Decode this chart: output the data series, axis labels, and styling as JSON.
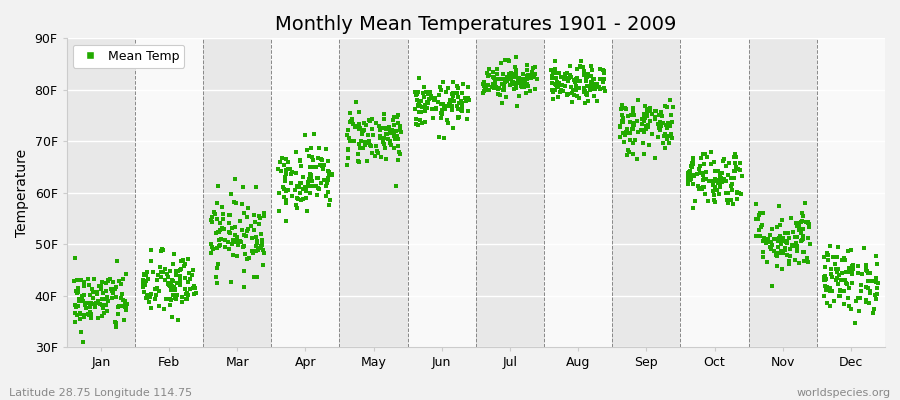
{
  "title": "Monthly Mean Temperatures 1901 - 2009",
  "ylabel": "Temperature",
  "ylim": [
    30,
    90
  ],
  "yticks": [
    30,
    40,
    50,
    60,
    70,
    80,
    90
  ],
  "ytick_labels": [
    "30F",
    "40F",
    "50F",
    "60F",
    "70F",
    "80F",
    "90F"
  ],
  "months": [
    "Jan",
    "Feb",
    "Mar",
    "Apr",
    "May",
    "Jun",
    "Jul",
    "Aug",
    "Sep",
    "Oct",
    "Nov",
    "Dec"
  ],
  "dot_color": "#22aa00",
  "fig_bg_color": "#f2f2f2",
  "plot_bg_color": "#f2f2f2",
  "band_light": "#f9f9f9",
  "band_dark": "#e8e8e8",
  "grid_color": "#ffffff",
  "legend_label": "Mean Temp",
  "bottom_left": "Latitude 28.75 Longitude 114.75",
  "bottom_right": "worldspecies.org",
  "month_mean_F": [
    39,
    42,
    52,
    63,
    71,
    77,
    82,
    81,
    73,
    63,
    51,
    43
  ],
  "month_std_F": [
    3.0,
    3.2,
    3.8,
    3.2,
    2.8,
    2.2,
    1.8,
    1.8,
    2.8,
    2.8,
    3.2,
    3.2
  ],
  "n_years": 109,
  "random_seed": 42,
  "title_fontsize": 14,
  "axis_label_fontsize": 10,
  "tick_fontsize": 9,
  "annotation_fontsize": 8
}
